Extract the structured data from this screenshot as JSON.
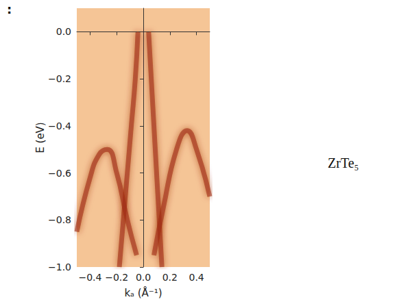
{
  "chart_data": {
    "type": "line",
    "xlabel": "kₐ (Å⁻¹)",
    "ylabel": "E (eV)",
    "annotations": [
      "ZrTe₅",
      ":"
    ],
    "xlim": [
      -0.5,
      0.5
    ],
    "xticks": [
      {
        "value": -0.4,
        "label": "−0.4"
      },
      {
        "value": -0.2,
        "label": "−0.2"
      },
      {
        "value": 0,
        "label": "0.0"
      },
      0.2,
      0.4
    ],
    "ylim": [
      -1.0,
      0.1
    ],
    "yticks": [
      {
        "value": -1.0,
        "label": "−1.0"
      },
      {
        "value": -0.8,
        "label": "−0.8"
      },
      {
        "value": -0.6,
        "label": "−0.6"
      },
      {
        "value": -0.4,
        "label": "−0.4"
      },
      {
        "value": -0.2,
        "label": "−0.2"
      },
      {
        "value": 0,
        "label": "0.0"
      }
    ],
    "fermi_level": 0.0,
    "grid": false,
    "series": [
      {
        "color": "#9e2a0e",
        "x": [
          -0.04,
          -0.06,
          -0.09,
          -0.12,
          -0.15,
          -0.18
        ],
        "values": [
          0.0,
          -0.2,
          -0.4,
          -0.6,
          -0.8,
          -1.0
        ]
      },
      {
        "color": "#9e2a0e",
        "x": [
          0.04,
          0.06,
          0.08,
          0.1,
          0.12,
          0.14
        ],
        "values": [
          0.0,
          -0.2,
          -0.4,
          -0.6,
          -0.8,
          -1.0
        ]
      },
      {
        "color": "#9e2a0e",
        "x": [
          -0.5,
          -0.4,
          -0.33,
          -0.27,
          -0.2,
          -0.12,
          -0.05
        ],
        "values": [
          -0.85,
          -0.62,
          -0.52,
          -0.5,
          -0.6,
          -0.8,
          -0.95
        ]
      },
      {
        "color": "#9e2a0e",
        "x": [
          0.08,
          0.15,
          0.25,
          0.33,
          0.4,
          0.5
        ],
        "values": [
          -0.95,
          -0.75,
          -0.5,
          -0.42,
          -0.5,
          -0.7
        ]
      }
    ]
  }
}
